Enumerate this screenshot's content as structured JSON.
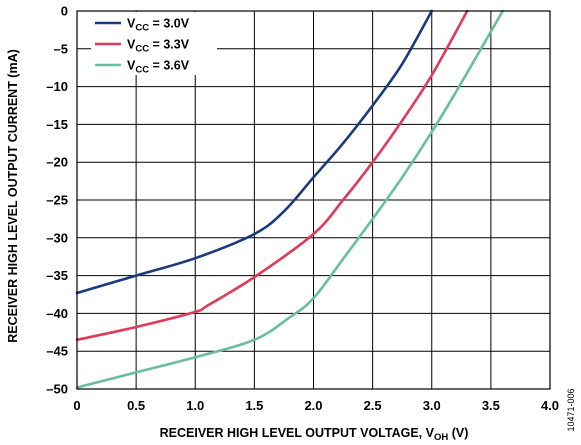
{
  "chart_data": {
    "type": "line",
    "title": "",
    "xlabel": "RECEIVER HIGH LEVEL OUTPUT VOLTAGE, V",
    "xlabel_sub": "OH",
    "xlabel_unit": "(V)",
    "ylabel": "RECEIVER HIGH LEVEL OUTPUT CURRENT (mA)",
    "xlim": [
      0,
      4.0
    ],
    "ylim": [
      -50,
      0
    ],
    "xticks": [
      "0",
      "0.5",
      "1.0",
      "1.5",
      "2.0",
      "2.5",
      "3.0",
      "3.5",
      "4.0"
    ],
    "yticks": [
      "0",
      "–5",
      "–10",
      "–15",
      "–20",
      "–25",
      "–30",
      "–35",
      "–40",
      "–45",
      "–50"
    ],
    "grid": true,
    "legend_position": "top-left",
    "series": [
      {
        "name_prefix": "V",
        "name_sub": "CC",
        "name_suffix": " = 3.0V",
        "color": "#1a3a7c",
        "x": [
          0,
          0.5,
          1.0,
          1.5,
          1.75,
          2.0,
          2.25,
          2.5,
          2.75,
          3.0
        ],
        "y": [
          -37.3,
          -35.0,
          -32.7,
          -29.5,
          -26.5,
          -22.0,
          -17.5,
          -12.5,
          -7.0,
          0
        ]
      },
      {
        "name_prefix": "V",
        "name_sub": "CC",
        "name_suffix": " = 3.3V",
        "color": "#e03a57",
        "x": [
          0,
          0.5,
          1.0,
          1.1,
          1.5,
          2.0,
          2.25,
          2.5,
          2.75,
          3.0,
          3.3
        ],
        "y": [
          -43.5,
          -41.8,
          -39.8,
          -39.0,
          -35.2,
          -29.5,
          -25.0,
          -20.0,
          -14.5,
          -8.5,
          0
        ]
      },
      {
        "name_prefix": "V",
        "name_sub": "CC",
        "name_suffix": " = 3.6V",
        "color": "#6abf96",
        "x": [
          0,
          0.5,
          1.0,
          1.5,
          1.8,
          2.0,
          2.25,
          2.5,
          2.75,
          3.0,
          3.25,
          3.6
        ],
        "y": [
          -49.8,
          -47.8,
          -45.8,
          -43.5,
          -40.5,
          -38.0,
          -32.8,
          -27.5,
          -22.0,
          -16.0,
          -9.5,
          0
        ]
      }
    ]
  },
  "figure_id": "10471-006"
}
